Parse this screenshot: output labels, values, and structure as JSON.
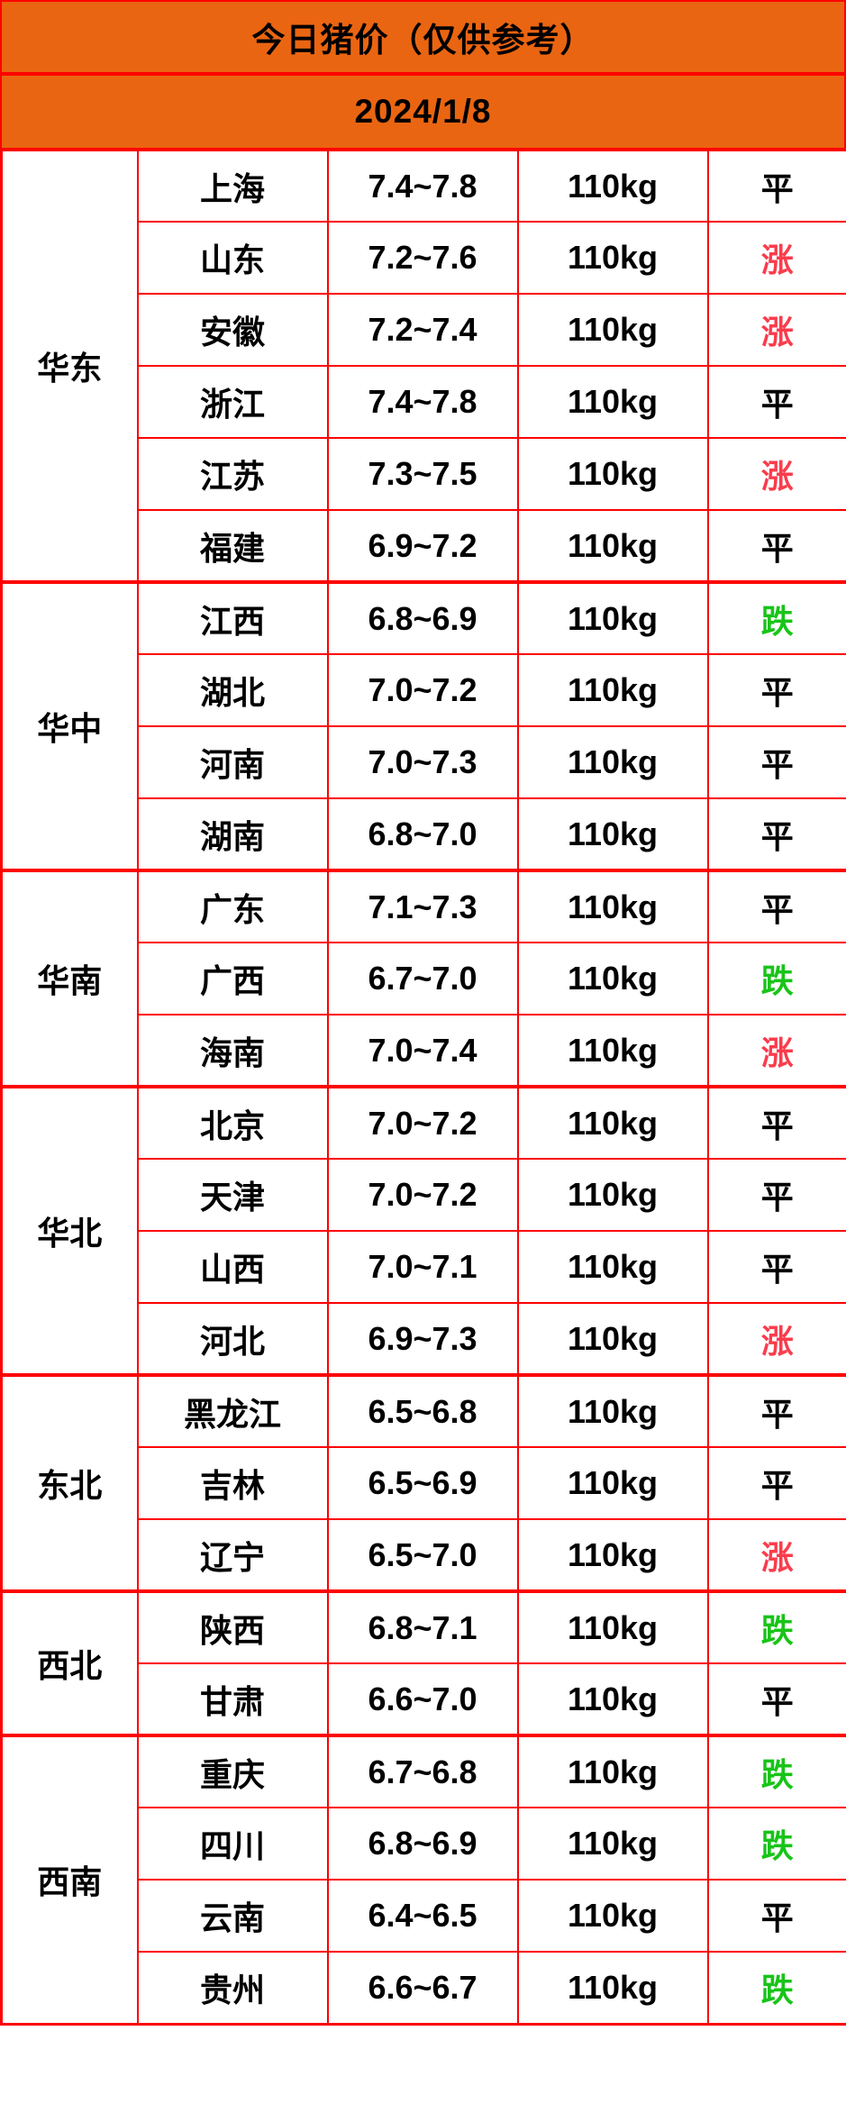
{
  "header": {
    "title": "今日猪价（仅供参考）",
    "date": "2024/1/8"
  },
  "colors": {
    "header_bg": "#EA6511",
    "grid": "#FE0000",
    "up": "#FA3C4C",
    "down": "#18C418",
    "flat": "#000000"
  },
  "table": {
    "regions": [
      {
        "name": "华东",
        "rows": [
          {
            "province": "上海",
            "price": "7.4~7.8",
            "weight": "110kg",
            "trend": "平",
            "trend_type": "flat"
          },
          {
            "province": "山东",
            "price": "7.2~7.6",
            "weight": "110kg",
            "trend": "涨",
            "trend_type": "up"
          },
          {
            "province": "安徽",
            "price": "7.2~7.4",
            "weight": "110kg",
            "trend": "涨",
            "trend_type": "up"
          },
          {
            "province": "浙江",
            "price": "7.4~7.8",
            "weight": "110kg",
            "trend": "平",
            "trend_type": "flat"
          },
          {
            "province": "江苏",
            "price": "7.3~7.5",
            "weight": "110kg",
            "trend": "涨",
            "trend_type": "up"
          },
          {
            "province": "福建",
            "price": "6.9~7.2",
            "weight": "110kg",
            "trend": "平",
            "trend_type": "flat"
          }
        ]
      },
      {
        "name": "华中",
        "rows": [
          {
            "province": "江西",
            "price": "6.8~6.9",
            "weight": "110kg",
            "trend": "跌",
            "trend_type": "down"
          },
          {
            "province": "湖北",
            "price": "7.0~7.2",
            "weight": "110kg",
            "trend": "平",
            "trend_type": "flat"
          },
          {
            "province": "河南",
            "price": "7.0~7.3",
            "weight": "110kg",
            "trend": "平",
            "trend_type": "flat"
          },
          {
            "province": "湖南",
            "price": "6.8~7.0",
            "weight": "110kg",
            "trend": "平",
            "trend_type": "flat"
          }
        ]
      },
      {
        "name": "华南",
        "rows": [
          {
            "province": "广东",
            "price": "7.1~7.3",
            "weight": "110kg",
            "trend": "平",
            "trend_type": "flat"
          },
          {
            "province": "广西",
            "price": "6.7~7.0",
            "weight": "110kg",
            "trend": "跌",
            "trend_type": "down"
          },
          {
            "province": "海南",
            "price": "7.0~7.4",
            "weight": "110kg",
            "trend": "涨",
            "trend_type": "up"
          }
        ]
      },
      {
        "name": "华北",
        "rows": [
          {
            "province": "北京",
            "price": "7.0~7.2",
            "weight": "110kg",
            "trend": "平",
            "trend_type": "flat"
          },
          {
            "province": "天津",
            "price": "7.0~7.2",
            "weight": "110kg",
            "trend": "平",
            "trend_type": "flat"
          },
          {
            "province": "山西",
            "price": "7.0~7.1",
            "weight": "110kg",
            "trend": "平",
            "trend_type": "flat"
          },
          {
            "province": "河北",
            "price": "6.9~7.3",
            "weight": "110kg",
            "trend": "涨",
            "trend_type": "up"
          }
        ]
      },
      {
        "name": "东北",
        "rows": [
          {
            "province": "黑龙江",
            "price": "6.5~6.8",
            "weight": "110kg",
            "trend": "平",
            "trend_type": "flat"
          },
          {
            "province": "吉林",
            "price": "6.5~6.9",
            "weight": "110kg",
            "trend": "平",
            "trend_type": "flat"
          },
          {
            "province": "辽宁",
            "price": "6.5~7.0",
            "weight": "110kg",
            "trend": "涨",
            "trend_type": "up"
          }
        ]
      },
      {
        "name": "西北",
        "rows": [
          {
            "province": "陕西",
            "price": "6.8~7.1",
            "weight": "110kg",
            "trend": "跌",
            "trend_type": "down"
          },
          {
            "province": "甘肃",
            "price": "6.6~7.0",
            "weight": "110kg",
            "trend": "平",
            "trend_type": "flat"
          }
        ]
      },
      {
        "name": "西南",
        "rows": [
          {
            "province": "重庆",
            "price": "6.7~6.8",
            "weight": "110kg",
            "trend": "跌",
            "trend_type": "down"
          },
          {
            "province": "四川",
            "price": "6.8~6.9",
            "weight": "110kg",
            "trend": "跌",
            "trend_type": "down"
          },
          {
            "province": "云南",
            "price": "6.4~6.5",
            "weight": "110kg",
            "trend": "平",
            "trend_type": "flat"
          },
          {
            "province": "贵州",
            "price": "6.6~6.7",
            "weight": "110kg",
            "trend": "跌",
            "trend_type": "down"
          }
        ]
      }
    ]
  }
}
